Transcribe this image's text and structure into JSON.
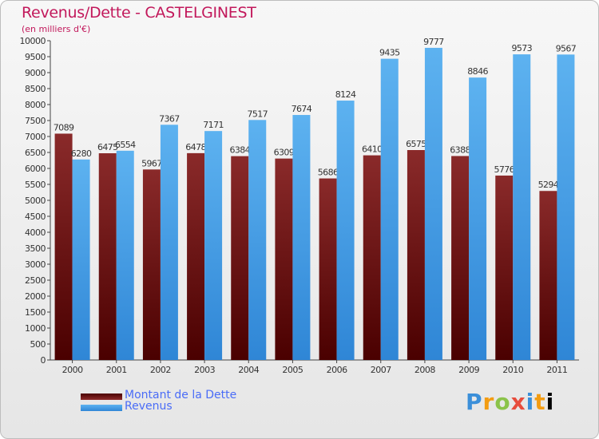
{
  "header": {
    "title": "Revenus/Dette - CASTELGINEST",
    "subtitle": "(en milliers d'€)"
  },
  "legend": {
    "items": [
      {
        "label": "Montant de la Dette",
        "color": "#7a1a1a"
      },
      {
        "label": "Revenus",
        "color": "#3d99e3"
      }
    ]
  },
  "logo": {
    "text": "Proxiti"
  },
  "chart_data": {
    "type": "bar",
    "title": "Revenus/Dette - CASTELGINEST",
    "subtitle": "(en milliers d'€)",
    "categories": [
      "2000",
      "2001",
      "2002",
      "2003",
      "2004",
      "2005",
      "2006",
      "2007",
      "2008",
      "2009",
      "2010",
      "2011"
    ],
    "series": [
      {
        "name": "Montant de la Dette",
        "color": "#7a1a1a",
        "values": [
          7089,
          6475,
          5967,
          6478,
          6384,
          6309,
          5686,
          6410,
          6575,
          6388,
          5776,
          5294
        ]
      },
      {
        "name": "Revenus",
        "color": "#3d99e3",
        "values": [
          6280,
          6554,
          7367,
          7171,
          7517,
          7674,
          8124,
          9435,
          9777,
          8846,
          9573,
          9567
        ]
      }
    ],
    "ylim": [
      0,
      10000
    ],
    "ytick_step": 500,
    "grid": false,
    "legend_position": "bottom-left"
  }
}
